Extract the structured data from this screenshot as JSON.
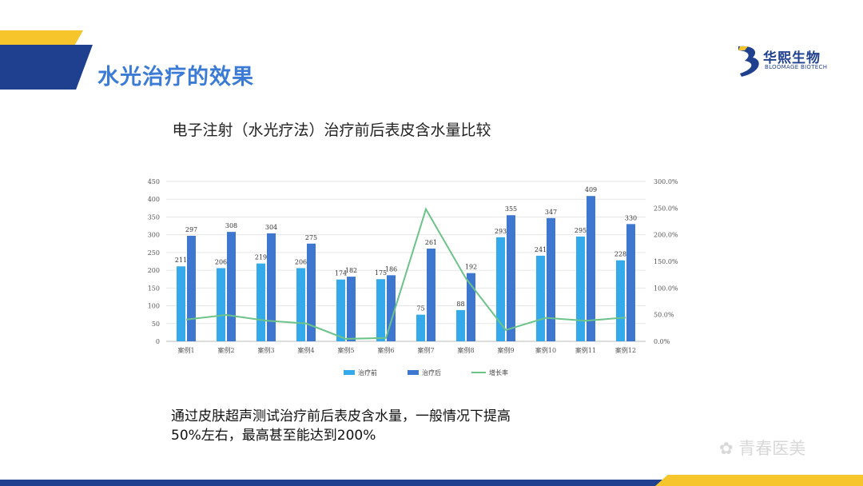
{
  "slide": {
    "title": "水光治疗的效果",
    "logo_cn": "华熙生物",
    "logo_en": "BLOOMAGE BIOTECH",
    "caption_line1": "通过皮肤超声测试治疗前后表皮含水量，一般情况下提高",
    "caption_line2": "50%左右，最高甚至能达到200%",
    "watermark": "青春医美",
    "colors": {
      "brand_blue": "#1f3f8f",
      "brand_yellow": "#f6c42b",
      "title_blue": "#3b7bd6"
    }
  },
  "chart_data": {
    "type": "bar",
    "title": "电子注射（水光疗法）治疗前后表皮含水量比较",
    "categories": [
      "案例1",
      "案例2",
      "案例3",
      "案例4",
      "案例5",
      "案例6",
      "案例7",
      "案例8",
      "案例9",
      "案例10",
      "案例11",
      "案例12"
    ],
    "series": [
      {
        "name": "治疗前",
        "type": "bar",
        "axis": "left",
        "color": "#35aaea",
        "values": [
          211,
          206,
          219,
          206,
          174,
          175,
          75,
          88,
          293,
          241,
          295,
          228
        ]
      },
      {
        "name": "治疗后",
        "type": "bar",
        "axis": "left",
        "color": "#3e77cf",
        "values": [
          297,
          308,
          304,
          275,
          182,
          186,
          261,
          192,
          355,
          347,
          409,
          330
        ]
      },
      {
        "name": "增长率",
        "type": "line",
        "axis": "right",
        "color": "#6cc38a",
        "values": [
          40.8,
          49.5,
          38.8,
          33.5,
          4.6,
          6.3,
          248.0,
          118.2,
          21.2,
          44.0,
          38.6,
          44.7
        ]
      }
    ],
    "left_axis": {
      "min": 0,
      "max": 450,
      "ticks": [
        "0",
        "50",
        "100",
        "150",
        "200",
        "250",
        "300",
        "350",
        "400",
        "450"
      ]
    },
    "right_axis": {
      "min": 0,
      "max": 300,
      "ticks": [
        "0.0%",
        "50.0%",
        "100.0%",
        "150.0%",
        "200.0%",
        "250.0%",
        "300.0%"
      ]
    },
    "grid": true,
    "legend_position": "bottom"
  }
}
